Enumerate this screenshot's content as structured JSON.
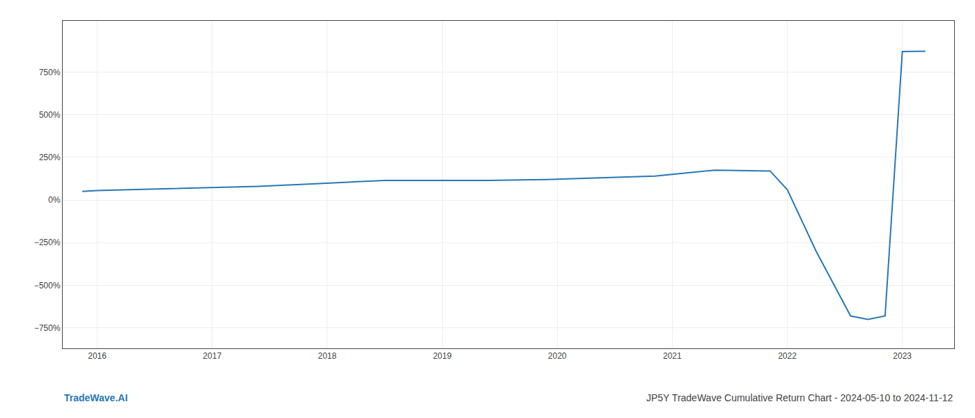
{
  "chart_data": {
    "type": "line",
    "x": [
      2015.87,
      2016.0,
      2016.4,
      2016.9,
      2017.4,
      2017.9,
      2018.4,
      2018.5,
      2018.9,
      2019.4,
      2019.9,
      2020.4,
      2020.5,
      2020.85,
      2021.0,
      2021.37,
      2021.85,
      2022.0,
      2022.25,
      2022.55,
      2022.7,
      2022.85,
      2023.0,
      2023.2
    ],
    "values": [
      50,
      55,
      62,
      70,
      80,
      95,
      110,
      115,
      115,
      115,
      120,
      130,
      133,
      140,
      150,
      175,
      170,
      60,
      -300,
      -680,
      -700,
      -680,
      870,
      872
    ],
    "color": "#2878b5",
    "xlim": [
      2015.7,
      2023.45
    ],
    "ylim": [
      -870,
      1050
    ],
    "xticks": [
      2016,
      2017,
      2018,
      2019,
      2020,
      2021,
      2022,
      2023
    ],
    "yticks": [
      {
        "value": -750,
        "label": "−750%"
      },
      {
        "value": -500,
        "label": "−500%"
      },
      {
        "value": -250,
        "label": "−250%"
      },
      {
        "value": 0,
        "label": "0%"
      },
      {
        "value": 250,
        "label": "250%"
      },
      {
        "value": 500,
        "label": "500%"
      },
      {
        "value": 750,
        "label": "750%"
      }
    ],
    "grid": true,
    "annotations": [
      {
        "text": "TradeWave.AI",
        "color": "#2878b5"
      },
      {
        "text": "JP5Y TradeWave Cumulative Return Chart - 2024-05-10 to 2024-11-12",
        "color": "#444444"
      }
    ]
  }
}
